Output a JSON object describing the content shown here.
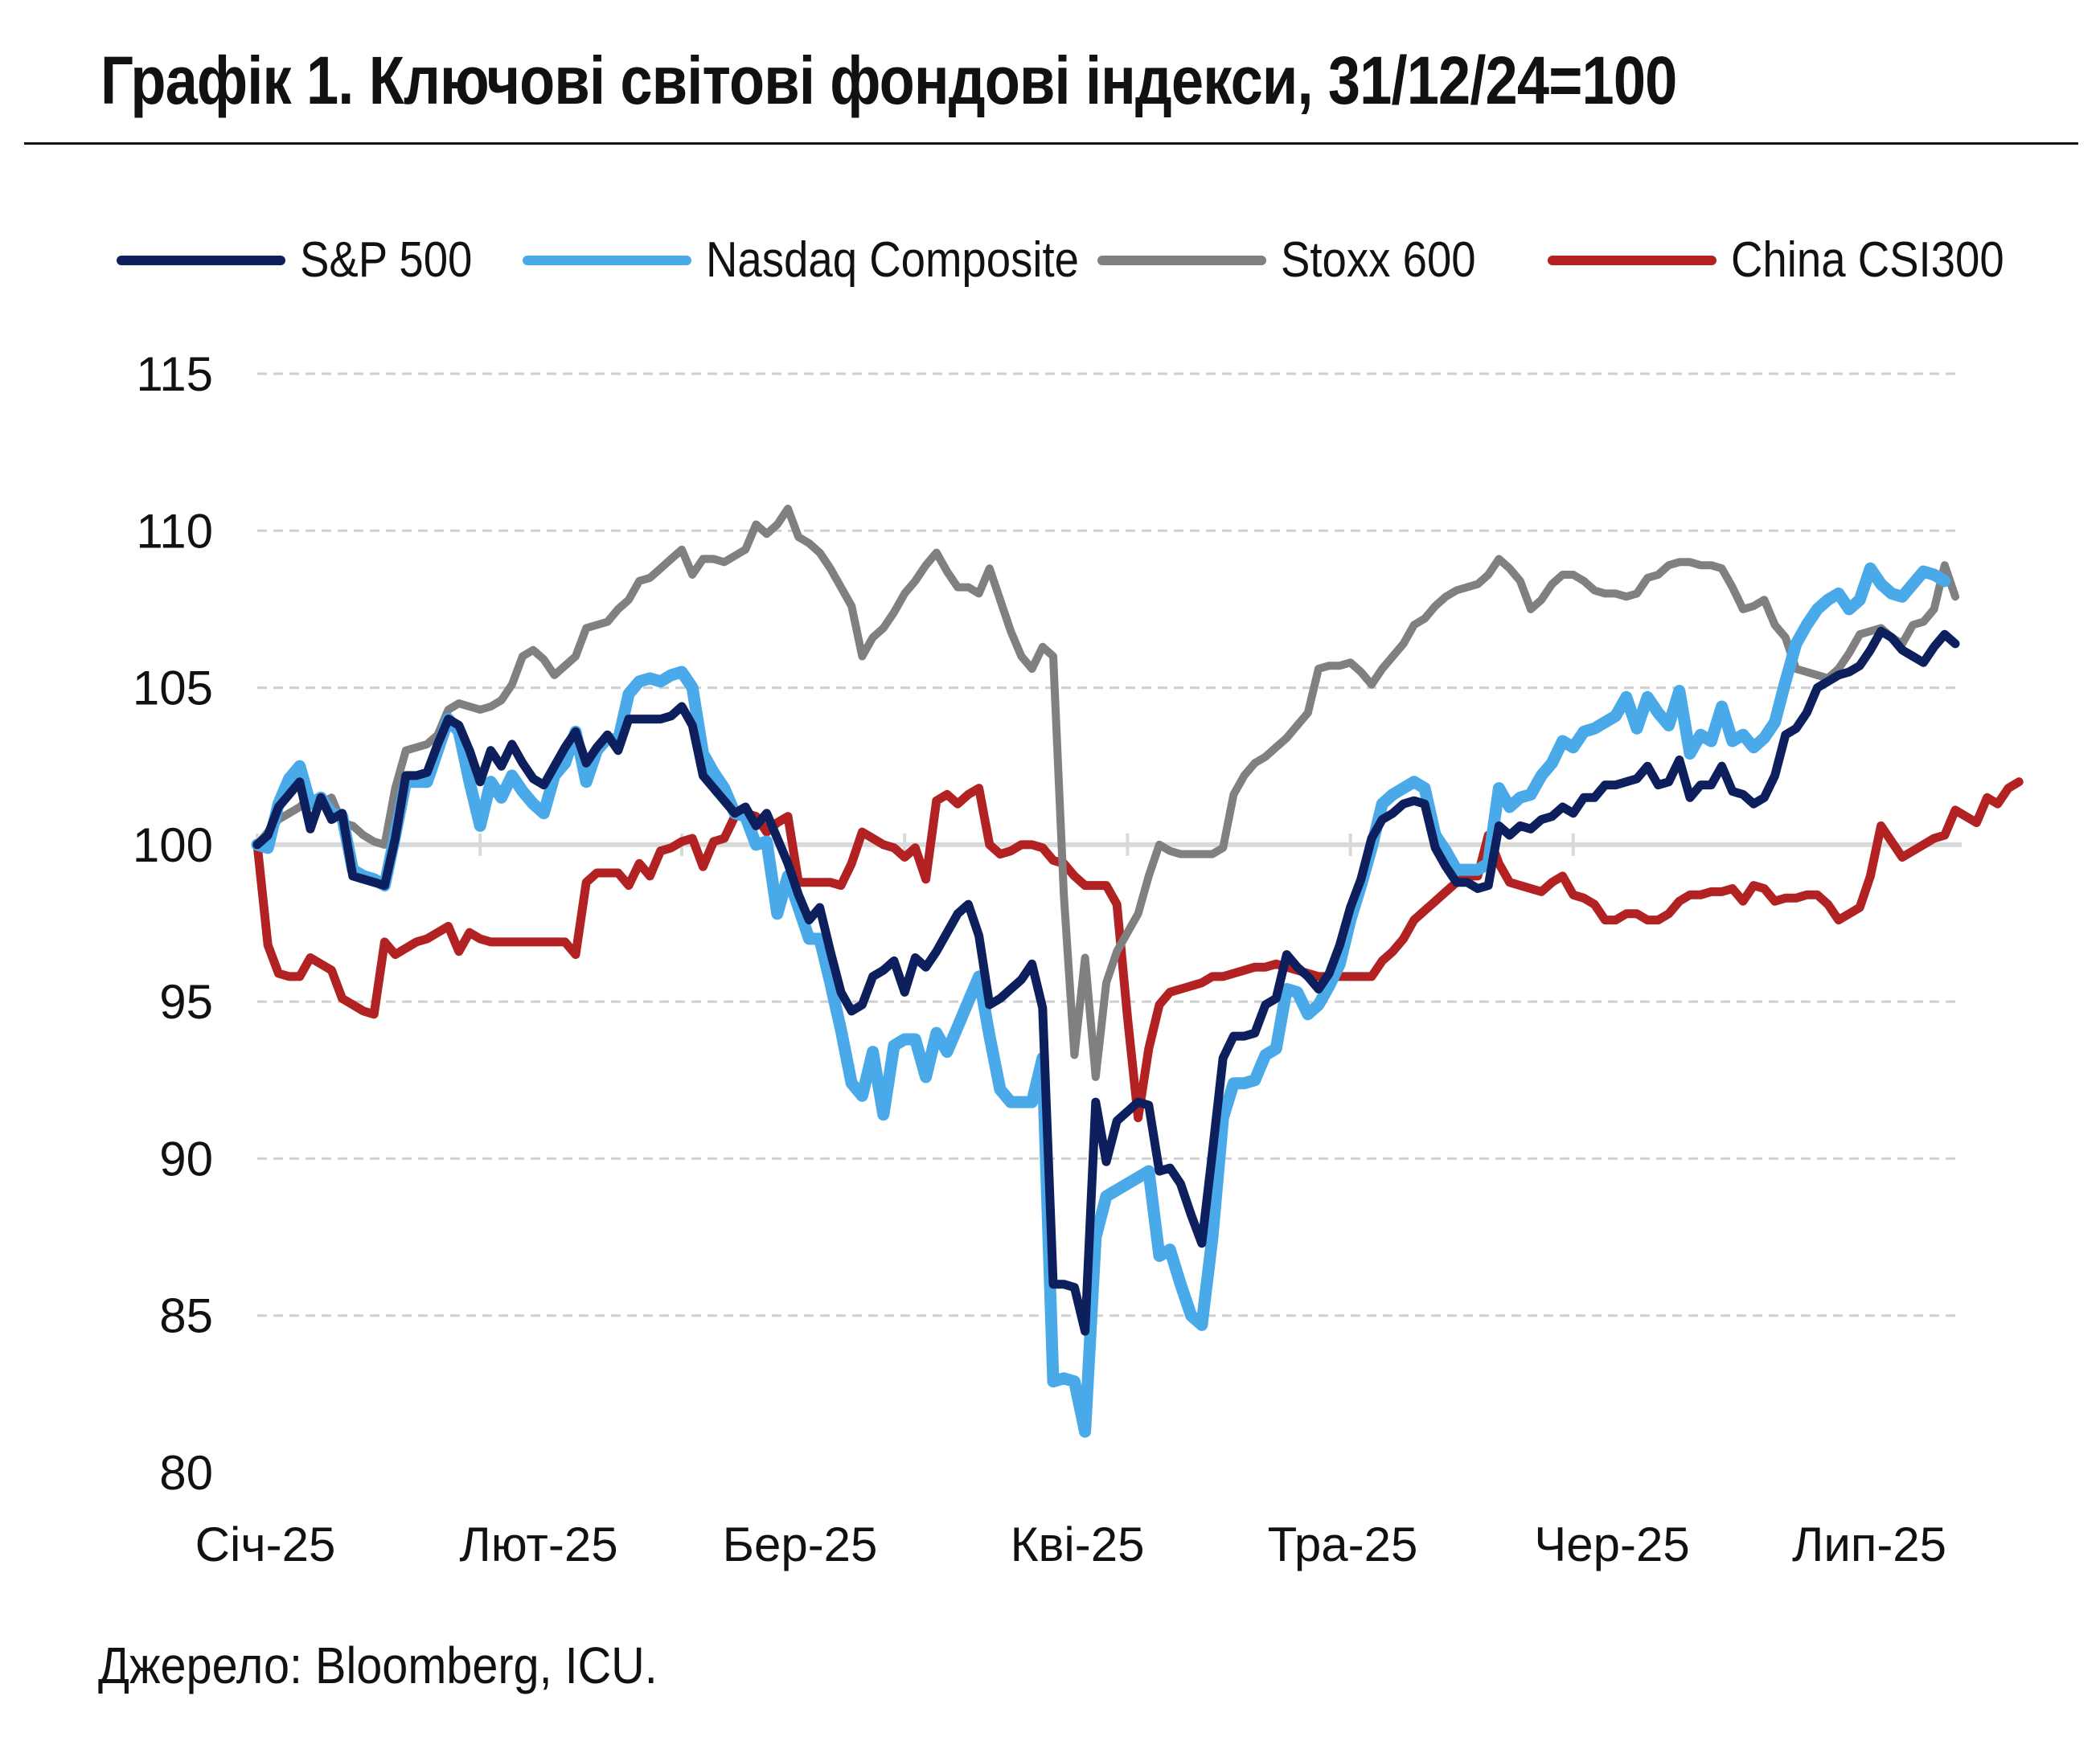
{
  "title": "Графік 1. Ключові світові фондові індекси, 31/12/24=100",
  "source": "Джерело: Bloomberg, ICU.",
  "chart_data": {
    "type": "line",
    "title": "Графік 1. Ключові світові фондові індекси, 31/12/24=100",
    "xlabel": "",
    "ylabel": "",
    "ylim": [
      80,
      115
    ],
    "yticks": [
      80,
      85,
      90,
      95,
      100,
      105,
      110,
      115
    ],
    "xticks": [
      "Січ-25",
      "Лют-25",
      "Бер-25",
      "Кві-25",
      "Тра-25",
      "Чер-25",
      "Лип-25"
    ],
    "grid": true,
    "baseline": 100,
    "legend_position": "top",
    "x_is_trading_day_index": true,
    "series": [
      {
        "name": "S&P 500",
        "color": "#0d1f5c",
        "values": [
          100,
          100.3,
          101.2,
          101.6,
          102.0,
          100.5,
          101.5,
          100.8,
          101.0,
          99.0,
          98.9,
          98.8,
          98.7,
          100.2,
          102.2,
          102.2,
          102.3,
          103.2,
          104.0,
          103.8,
          103.0,
          102.0,
          103.0,
          102.5,
          103.2,
          102.6,
          102.1,
          101.9,
          102.5,
          103.1,
          103.6,
          102.6,
          103.1,
          103.5,
          103.0,
          104.0,
          104.0,
          104.0,
          104.0,
          104.1,
          104.4,
          103.8,
          102.2,
          101.8,
          101.4,
          101.0,
          101.2,
          100.6,
          101.0,
          100.2,
          99.4,
          98.4,
          97.6,
          98.0,
          96.6,
          95.3,
          94.7,
          94.9,
          95.8,
          96.0,
          96.3,
          95.3,
          96.4,
          96.1,
          96.6,
          97.2,
          97.8,
          98.1,
          97.1,
          94.9,
          95.1,
          95.4,
          95.7,
          96.2,
          94.8,
          86.0,
          86.0,
          85.9,
          84.5,
          91.8,
          89.9,
          91.2,
          91.5,
          91.8,
          91.7,
          89.6,
          89.7,
          89.2,
          88.2,
          87.3,
          90.2,
          93.2,
          93.9,
          93.9,
          94.0,
          94.9,
          95.1,
          96.5,
          96.1,
          95.8,
          95.4,
          95.9,
          96.8,
          98.0,
          98.9,
          100.2,
          100.8,
          101.0,
          101.3,
          101.4,
          101.3,
          99.9,
          99.3,
          98.8,
          98.8,
          98.6,
          98.7,
          100.6,
          100.3,
          100.6,
          100.5,
          100.8,
          100.9,
          101.2,
          101.0,
          101.5,
          101.5,
          101.9,
          101.9,
          102.0,
          102.1,
          102.5,
          101.9,
          102.0,
          102.7,
          101.5,
          101.9,
          101.9,
          102.5,
          101.7,
          101.6,
          101.3,
          101.5,
          102.2,
          103.5,
          103.7,
          104.2,
          105.0,
          105.2,
          105.4,
          105.5,
          105.7,
          106.2,
          106.8,
          106.6,
          106.2,
          106.0,
          105.8,
          106.3,
          106.7,
          106.4
        ]
      },
      {
        "name": "Nasdaq Composite",
        "color": "#4aa9e8",
        "values": [
          100,
          99.9,
          101.3,
          102.1,
          102.5,
          101.3,
          101.5,
          101.0,
          100.9,
          99.2,
          99.0,
          98.9,
          98.7,
          100.3,
          102.0,
          102.0,
          102.0,
          103.0,
          104.0,
          103.6,
          102.0,
          100.6,
          102.0,
          101.5,
          102.2,
          101.7,
          101.3,
          101.0,
          102.2,
          102.6,
          103.6,
          102.0,
          103.0,
          103.4,
          103.3,
          104.8,
          105.2,
          105.3,
          105.2,
          105.4,
          105.5,
          105.0,
          102.9,
          102.3,
          101.8,
          101.0,
          100.9,
          100.0,
          100.1,
          97.8,
          99.0,
          98.0,
          97.0,
          97.0,
          95.6,
          94.1,
          92.4,
          92.0,
          93.4,
          91.4,
          93.6,
          93.8,
          93.8,
          92.6,
          94.0,
          93.4,
          94.2,
          95.0,
          95.8,
          93.9,
          92.2,
          91.8,
          91.8,
          91.8,
          93.2,
          82.9,
          83.0,
          82.9,
          81.3,
          87.5,
          88.8,
          89.0,
          89.2,
          89.4,
          89.6,
          86.9,
          87.1,
          86.0,
          85.0,
          84.7,
          87.5,
          91.3,
          92.4,
          92.4,
          92.5,
          93.3,
          93.5,
          95.4,
          95.3,
          94.6,
          94.9,
          95.5,
          96.2,
          97.6,
          98.7,
          99.9,
          101.3,
          101.6,
          101.8,
          102.0,
          101.8,
          100.3,
          99.8,
          99.2,
          99.2,
          99.2,
          99.4,
          101.8,
          101.2,
          101.5,
          101.6,
          102.2,
          102.6,
          103.3,
          103.1,
          103.6,
          103.7,
          103.9,
          104.1,
          104.7,
          103.7,
          104.7,
          104.2,
          103.8,
          104.9,
          102.9,
          103.5,
          103.3,
          104.4,
          103.3,
          103.5,
          103.1,
          103.4,
          103.9,
          105.2,
          106.4,
          107.0,
          107.5,
          107.8,
          108.0,
          107.5,
          107.8,
          108.8,
          108.3,
          108.0,
          107.9,
          108.3,
          108.7,
          108.6,
          108.4
        ]
      },
      {
        "name": "Stoxx 600",
        "color": "#808080",
        "values": [
          100,
          100.4,
          100.8,
          101.0,
          101.2,
          101.5,
          101.3,
          101.5,
          100.7,
          100.6,
          100.3,
          100.1,
          100.0,
          101.8,
          103.0,
          103.1,
          103.2,
          103.5,
          104.3,
          104.5,
          104.4,
          104.3,
          104.4,
          104.6,
          105.1,
          106.0,
          106.2,
          105.9,
          105.4,
          105.7,
          106.0,
          106.9,
          107.0,
          107.1,
          107.5,
          107.8,
          108.4,
          108.5,
          108.8,
          109.1,
          109.4,
          108.6,
          109.1,
          109.1,
          109.0,
          109.2,
          109.4,
          110.2,
          109.9,
          110.2,
          110.7,
          109.8,
          109.6,
          109.3,
          108.8,
          108.2,
          107.6,
          106.0,
          106.6,
          106.9,
          107.4,
          108.0,
          108.4,
          108.9,
          109.3,
          108.7,
          108.2,
          108.2,
          108.0,
          108.8,
          107.8,
          106.8,
          106.0,
          105.6,
          106.3,
          106.0,
          98.4,
          93.3,
          96.4,
          92.6,
          95.6,
          96.6,
          97.2,
          97.8,
          99.0,
          100.0,
          99.8,
          99.7,
          99.7,
          99.7,
          99.7,
          99.9,
          101.6,
          102.2,
          102.6,
          102.8,
          103.1,
          103.4,
          103.8,
          104.2,
          105.6,
          105.7,
          105.7,
          105.8,
          105.5,
          105.1,
          105.6,
          106.0,
          106.4,
          107.0,
          107.2,
          107.6,
          107.9,
          108.1,
          108.2,
          108.3,
          108.6,
          109.1,
          108.8,
          108.4,
          107.5,
          107.8,
          108.3,
          108.6,
          108.6,
          108.4,
          108.1,
          108.0,
          108.0,
          107.9,
          108.0,
          108.5,
          108.6,
          108.9,
          109.0,
          109.0,
          108.9,
          108.9,
          108.8,
          108.2,
          107.5,
          107.6,
          107.8,
          107.0,
          106.6,
          105.6,
          105.5,
          105.4,
          105.3,
          105.6,
          106.1,
          106.7,
          106.8,
          106.9,
          106.6,
          106.4,
          107.0,
          107.1,
          107.5,
          108.9,
          107.9
        ]
      },
      {
        "name": "China CSI300",
        "color": "#b22222",
        "values": [
          100,
          96.8,
          95.9,
          95.8,
          95.8,
          96.4,
          96.2,
          96.0,
          95.1,
          94.9,
          94.7,
          94.6,
          96.9,
          96.5,
          96.7,
          96.9,
          97.0,
          97.2,
          97.4,
          96.6,
          97.2,
          97.0,
          96.9,
          96.9,
          96.9,
          96.9,
          96.9,
          96.9,
          96.9,
          96.9,
          96.5,
          98.8,
          99.1,
          99.1,
          99.1,
          98.7,
          99.4,
          99.0,
          99.8,
          99.9,
          100.1,
          100.2,
          99.3,
          100.1,
          100.2,
          100.9,
          101.0,
          100.9,
          100.4,
          100.7,
          100.9,
          98.8,
          98.8,
          98.8,
          98.8,
          98.7,
          99.4,
          100.4,
          100.2,
          100.0,
          99.9,
          99.6,
          99.9,
          98.9,
          101.4,
          101.6,
          101.3,
          101.6,
          101.8,
          100.0,
          99.7,
          99.8,
          100.0,
          100.0,
          99.9,
          99.5,
          99.4,
          99.0,
          98.7,
          98.7,
          98.7,
          98.1,
          94.5,
          91.3,
          93.5,
          94.9,
          95.3,
          95.4,
          95.5,
          95.6,
          95.8,
          95.8,
          95.9,
          96.0,
          96.1,
          96.1,
          96.2,
          96.1,
          96.0,
          95.9,
          95.8,
          95.8,
          95.8,
          95.8,
          95.8,
          95.8,
          96.3,
          96.6,
          97.0,
          97.6,
          97.9,
          98.2,
          98.5,
          98.8,
          99.0,
          99.0,
          100.3,
          99.4,
          98.8,
          98.7,
          98.6,
          98.5,
          98.8,
          99.0,
          98.4,
          98.3,
          98.1,
          97.6,
          97.6,
          97.8,
          97.8,
          97.6,
          97.6,
          97.8,
          98.2,
          98.4,
          98.4,
          98.5,
          98.5,
          98.6,
          98.2,
          98.7,
          98.6,
          98.2,
          98.3,
          98.3,
          98.4,
          98.4,
          98.1,
          97.6,
          97.8,
          98.0,
          99.0,
          100.6,
          100.1,
          99.6,
          99.8,
          100.0,
          100.2,
          100.3,
          101.1,
          100.9,
          100.7,
          101.5,
          101.3,
          101.8,
          102.0
        ]
      }
    ]
  }
}
